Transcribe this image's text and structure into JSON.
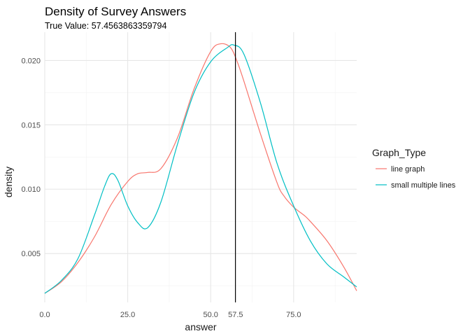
{
  "chart_data": {
    "type": "line",
    "title": "Density of Survey Answers",
    "subtitle": "True Value: 57.4563863359794",
    "xlabel": "answer",
    "ylabel": "density",
    "xlim": [
      0,
      94
    ],
    "ylim": [
      0.0012,
      0.0222
    ],
    "x_ticks": [
      0,
      25,
      50,
      57.5,
      75
    ],
    "x_tick_labels": [
      "0.0",
      "25.0",
      "50.0",
      "57.5",
      "75.0"
    ],
    "y_ticks": [
      0.005,
      0.01,
      0.015,
      0.02
    ],
    "y_tick_labels": [
      "0.005",
      "0.010",
      "0.015",
      "0.020"
    ],
    "grid": true,
    "legend": {
      "title": "Graph_Type",
      "position": "right"
    },
    "vline": {
      "x": 57.4563863359794,
      "color": "#000000"
    },
    "series": [
      {
        "name": "line graph",
        "color": "#F8766D",
        "x": [
          0,
          5,
          10,
          15,
          20,
          25,
          28,
          31,
          35,
          40,
          45,
          50,
          53,
          56,
          58,
          60,
          65,
          70,
          72,
          75,
          78,
          80,
          85,
          90,
          94
        ],
        "y": [
          0.0019,
          0.0028,
          0.0043,
          0.0063,
          0.0088,
          0.0106,
          0.0112,
          0.0113,
          0.0116,
          0.014,
          0.0178,
          0.0207,
          0.0213,
          0.021,
          0.0199,
          0.0184,
          0.0143,
          0.0105,
          0.0095,
          0.0086,
          0.008,
          0.0075,
          0.006,
          0.004,
          0.0021
        ]
      },
      {
        "name": "small multiple lines",
        "color": "#00BFC4",
        "x": [
          0,
          5,
          10,
          15,
          18,
          20,
          22,
          25,
          28,
          31,
          35,
          40,
          45,
          50,
          55,
          57,
          60,
          65,
          70,
          75,
          80,
          85,
          90,
          94
        ],
        "y": [
          0.0019,
          0.0029,
          0.0046,
          0.008,
          0.0102,
          0.0112,
          0.0107,
          0.0087,
          0.0074,
          0.007,
          0.009,
          0.0135,
          0.0175,
          0.0199,
          0.021,
          0.0212,
          0.0205,
          0.0167,
          0.012,
          0.0087,
          0.006,
          0.0042,
          0.0032,
          0.0024
        ]
      }
    ]
  }
}
